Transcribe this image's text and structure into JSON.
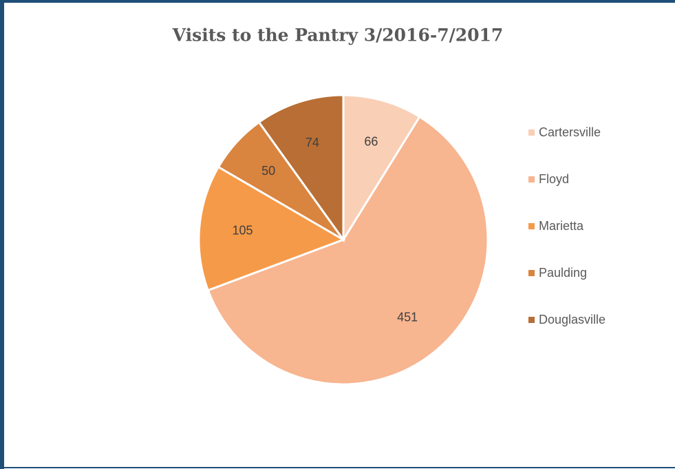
{
  "chart_data": {
    "type": "pie",
    "title": "Visits to the Pantry 3/2016-7/2017",
    "categories": [
      "Cartersville",
      "Floyd",
      "Marietta",
      "Paulding",
      "Douglasville"
    ],
    "values": [
      66,
      451,
      105,
      50,
      74
    ],
    "colors": [
      "#f9cfb5",
      "#f7b590",
      "#f59a48",
      "#d9843f",
      "#b86e34"
    ],
    "legend": "right"
  }
}
